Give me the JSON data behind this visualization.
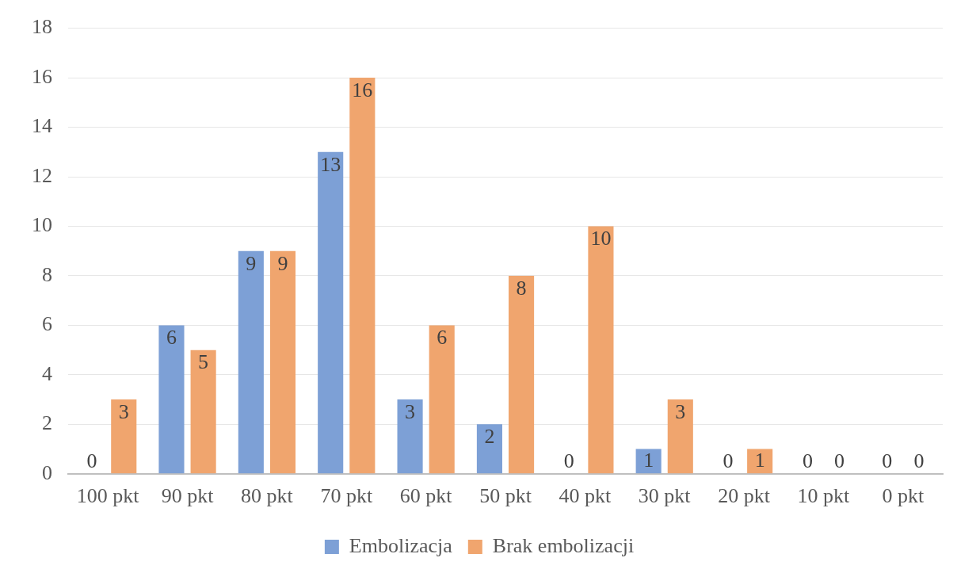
{
  "chart_data": {
    "type": "bar",
    "categories": [
      "100 pkt",
      "90 pkt",
      "80 pkt",
      "70 pkt",
      "60 pkt",
      "50 pkt",
      "40 pkt",
      "30 pkt",
      "20 pkt",
      "10 pkt",
      "0 pkt"
    ],
    "series": [
      {
        "name": "Embolizacja",
        "color": "#7da0d6",
        "values": [
          0,
          6,
          9,
          13,
          3,
          2,
          0,
          1,
          0,
          0,
          0
        ]
      },
      {
        "name": "Brak embolizacji",
        "color": "#f0a56e",
        "values": [
          3,
          5,
          9,
          16,
          6,
          8,
          10,
          3,
          1,
          0,
          0
        ]
      }
    ],
    "ylim": [
      0,
      18
    ],
    "yticks": [
      0,
      2,
      4,
      6,
      8,
      10,
      12,
      14,
      16,
      18
    ],
    "grid": "y",
    "legend": "bottom",
    "data_labels": true
  }
}
